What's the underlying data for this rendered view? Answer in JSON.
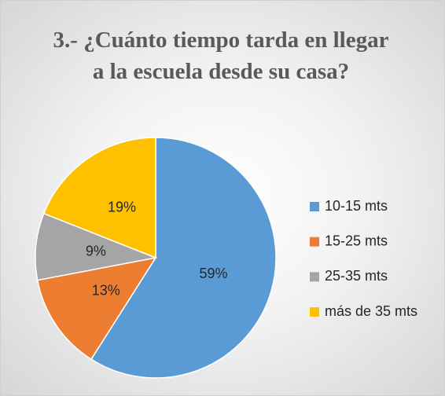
{
  "chart_data": {
    "type": "pie",
    "title": "3.- ¿Cuánto tiempo tarda en llegar a la escuela desde su casa?",
    "categories": [
      "10-15 mts",
      "15-25 mts",
      "25-35 mts",
      "más de 35 mts"
    ],
    "values": [
      59,
      13,
      9,
      19
    ],
    "value_labels": [
      "59%",
      "13%",
      "9%",
      "19%"
    ],
    "colors": [
      "#5b9bd5",
      "#ed7d31",
      "#a5a5a5",
      "#ffc000"
    ],
    "legend": "right"
  }
}
